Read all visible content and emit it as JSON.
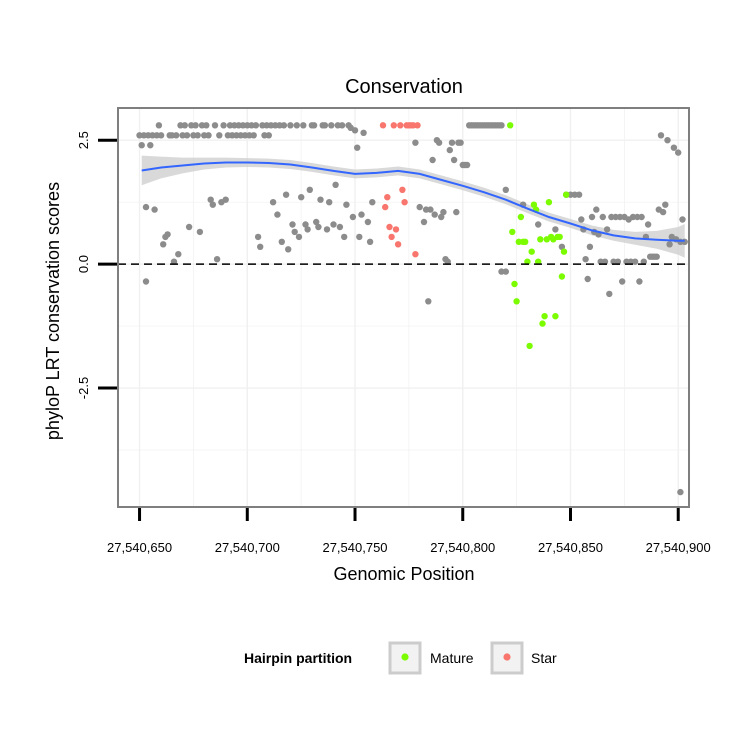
{
  "chart_data": {
    "type": "scatter",
    "title": "Conservation",
    "xlabel": "Genomic Position",
    "ylabel": "phyloP LRT conservation scores",
    "xlim": [
      27540640,
      27540905
    ],
    "ylim": [
      -4.9,
      3.15
    ],
    "x_ticks": [
      27540650,
      27540700,
      27540750,
      27540800,
      27540850,
      27540900
    ],
    "x_tick_labels": [
      "27,540,650",
      "27,540,700",
      "27,540,750",
      "27,540,800",
      "27,540,850",
      "27,540,900"
    ],
    "y_ticks": [
      -2.5,
      0.0,
      2.5
    ],
    "y_tick_labels": [
      "-2.5",
      "0.0",
      "2.5"
    ],
    "reference_line": {
      "y": 0,
      "style": "dashed"
    },
    "grid": true,
    "legend": {
      "title": "Hairpin partition",
      "position": "bottom",
      "entries": [
        {
          "label": "Mature",
          "color": "#7CFC00"
        },
        {
          "label": "Star",
          "color": "#F8766D"
        }
      ]
    },
    "colors": {
      "other": "#8C8C8C",
      "Mature": "#7CFC00",
      "Star": "#F8766D",
      "smooth": "#3366FF",
      "band": "#CCCCCC"
    },
    "series": [
      {
        "name": "Other",
        "points": [
          [
            27540650,
            2.6
          ],
          [
            27540651,
            2.4
          ],
          [
            27540652,
            2.6
          ],
          [
            27540653,
            1.15
          ],
          [
            27540654,
            2.6
          ],
          [
            27540655,
            2.4
          ],
          [
            27540656,
            2.6
          ],
          [
            27540657,
            1.1
          ],
          [
            27540658,
            2.6
          ],
          [
            27540659,
            2.8
          ],
          [
            27540660,
            2.6
          ],
          [
            27540653,
            -0.35
          ],
          [
            27540661,
            0.4
          ],
          [
            27540662,
            0.55
          ],
          [
            27540663,
            0.6
          ],
          [
            27540664,
            2.6
          ],
          [
            27540665,
            2.6
          ],
          [
            27540666,
            0.05
          ],
          [
            27540667,
            2.6
          ],
          [
            27540668,
            0.2
          ],
          [
            27540669,
            2.8
          ],
          [
            27540670,
            2.6
          ],
          [
            27540671,
            2.8
          ],
          [
            27540672,
            2.6
          ],
          [
            27540673,
            0.75
          ],
          [
            27540674,
            2.8
          ],
          [
            27540675,
            2.6
          ],
          [
            27540676,
            2.8
          ],
          [
            27540677,
            2.6
          ],
          [
            27540678,
            0.65
          ],
          [
            27540679,
            2.8
          ],
          [
            27540680,
            2.6
          ],
          [
            27540681,
            2.8
          ],
          [
            27540682,
            2.6
          ],
          [
            27540683,
            1.3
          ],
          [
            27540684,
            1.2
          ],
          [
            27540685,
            2.8
          ],
          [
            27540686,
            0.1
          ],
          [
            27540687,
            2.6
          ],
          [
            27540688,
            1.25
          ],
          [
            27540689,
            2.8
          ],
          [
            27540690,
            1.3
          ],
          [
            27540691,
            2.6
          ],
          [
            27540692,
            2.8
          ],
          [
            27540693,
            2.6
          ],
          [
            27540694,
            2.8
          ],
          [
            27540695,
            2.6
          ],
          [
            27540696,
            2.8
          ],
          [
            27540697,
            2.6
          ],
          [
            27540698,
            2.8
          ],
          [
            27540699,
            2.6
          ],
          [
            27540700,
            2.8
          ],
          [
            27540701,
            2.6
          ],
          [
            27540702,
            2.8
          ],
          [
            27540703,
            2.6
          ],
          [
            27540704,
            2.8
          ],
          [
            27540705,
            0.55
          ],
          [
            27540706,
            0.35
          ],
          [
            27540707,
            2.8
          ],
          [
            27540708,
            2.6
          ],
          [
            27540709,
            2.8
          ],
          [
            27540710,
            2.6
          ],
          [
            27540711,
            2.8
          ],
          [
            27540712,
            1.25
          ],
          [
            27540713,
            2.8
          ],
          [
            27540714,
            1.0
          ],
          [
            27540715,
            2.8
          ],
          [
            27540716,
            0.45
          ],
          [
            27540717,
            2.8
          ],
          [
            27540718,
            1.4
          ],
          [
            27540719,
            0.3
          ],
          [
            27540720,
            2.8
          ],
          [
            27540721,
            0.8
          ],
          [
            27540722,
            0.65
          ],
          [
            27540723,
            2.8
          ],
          [
            27540724,
            0.55
          ],
          [
            27540725,
            1.35
          ],
          [
            27540726,
            2.8
          ],
          [
            27540727,
            0.8
          ],
          [
            27540728,
            0.7
          ],
          [
            27540729,
            1.5
          ],
          [
            27540730,
            2.8
          ],
          [
            27540731,
            2.8
          ],
          [
            27540732,
            0.85
          ],
          [
            27540733,
            0.75
          ],
          [
            27540734,
            1.3
          ],
          [
            27540735,
            2.8
          ],
          [
            27540736,
            2.8
          ],
          [
            27540737,
            0.7
          ],
          [
            27540738,
            1.25
          ],
          [
            27540739,
            2.8
          ],
          [
            27540740,
            0.8
          ],
          [
            27540741,
            1.6
          ],
          [
            27540742,
            2.8
          ],
          [
            27540743,
            0.75
          ],
          [
            27540744,
            2.8
          ],
          [
            27540745,
            0.55
          ],
          [
            27540746,
            1.2
          ],
          [
            27540747,
            2.8
          ],
          [
            27540748,
            2.75
          ],
          [
            27540749,
            0.95
          ],
          [
            27540750,
            2.7
          ],
          [
            27540751,
            2.35
          ],
          [
            27540752,
            0.55
          ],
          [
            27540753,
            1.0
          ],
          [
            27540754,
            2.65
          ],
          [
            27540756,
            0.85
          ],
          [
            27540757,
            0.45
          ],
          [
            27540758,
            1.25
          ],
          [
            27540778,
            2.45
          ],
          [
            27540780,
            1.15
          ],
          [
            27540782,
            0.85
          ],
          [
            27540783,
            1.1
          ],
          [
            27540784,
            -0.75
          ],
          [
            27540785,
            1.1
          ],
          [
            27540786,
            2.1
          ],
          [
            27540787,
            1.0
          ],
          [
            27540788,
            2.5
          ],
          [
            27540789,
            2.45
          ],
          [
            27540790,
            0.95
          ],
          [
            27540791,
            1.05
          ],
          [
            27540792,
            0.1
          ],
          [
            27540793,
            0.05
          ],
          [
            27540794,
            2.3
          ],
          [
            27540795,
            2.45
          ],
          [
            27540796,
            2.1
          ],
          [
            27540797,
            1.05
          ],
          [
            27540798,
            2.45
          ],
          [
            27540799,
            2.45
          ],
          [
            27540800,
            2.0
          ],
          [
            27540801,
            2.0
          ],
          [
            27540802,
            2.0
          ],
          [
            27540803,
            2.8
          ],
          [
            27540804,
            2.8
          ],
          [
            27540805,
            2.8
          ],
          [
            27540806,
            2.8
          ],
          [
            27540807,
            2.8
          ],
          [
            27540808,
            2.8
          ],
          [
            27540809,
            2.8
          ],
          [
            27540810,
            2.8
          ],
          [
            27540811,
            2.8
          ],
          [
            27540812,
            2.8
          ],
          [
            27540813,
            2.8
          ],
          [
            27540814,
            2.8
          ],
          [
            27540815,
            2.8
          ],
          [
            27540816,
            2.8
          ],
          [
            27540817,
            2.8
          ],
          [
            27540818,
            2.8
          ],
          [
            27540818,
            -0.15
          ],
          [
            27540820,
            -0.15
          ],
          [
            27540820,
            1.5
          ],
          [
            27540828,
            1.2
          ],
          [
            27540835,
            0.8
          ],
          [
            27540843,
            0.7
          ],
          [
            27540846,
            0.35
          ],
          [
            27540848,
            1.4
          ],
          [
            27540850,
            1.4
          ],
          [
            27540852,
            1.4
          ],
          [
            27540854,
            1.4
          ],
          [
            27540855,
            0.9
          ],
          [
            27540856,
            0.7
          ],
          [
            27540857,
            0.1
          ],
          [
            27540858,
            -0.3
          ],
          [
            27540859,
            0.35
          ],
          [
            27540860,
            0.95
          ],
          [
            27540861,
            0.65
          ],
          [
            27540862,
            1.1
          ],
          [
            27540863,
            0.6
          ],
          [
            27540864,
            0.05
          ],
          [
            27540865,
            0.95
          ],
          [
            27540866,
            0.05
          ],
          [
            27540867,
            0.7
          ],
          [
            27540868,
            -0.6
          ],
          [
            27540869,
            0.95
          ],
          [
            27540870,
            0.05
          ],
          [
            27540871,
            0.95
          ],
          [
            27540872,
            0.05
          ],
          [
            27540873,
            0.95
          ],
          [
            27540874,
            -0.35
          ],
          [
            27540875,
            0.95
          ],
          [
            27540876,
            0.05
          ],
          [
            27540877,
            0.9
          ],
          [
            27540878,
            0.05
          ],
          [
            27540879,
            0.95
          ],
          [
            27540880,
            0.05
          ],
          [
            27540881,
            0.95
          ],
          [
            27540882,
            -0.35
          ],
          [
            27540883,
            0.95
          ],
          [
            27540884,
            0.05
          ],
          [
            27540885,
            0.55
          ],
          [
            27540886,
            0.8
          ],
          [
            27540887,
            0.15
          ],
          [
            27540888,
            0.15
          ],
          [
            27540889,
            0.15
          ],
          [
            27540890,
            0.15
          ],
          [
            27540891,
            1.1
          ],
          [
            27540892,
            2.6
          ],
          [
            27540893,
            1.05
          ],
          [
            27540894,
            1.2
          ],
          [
            27540895,
            2.5
          ],
          [
            27540896,
            0.4
          ],
          [
            27540897,
            0.55
          ],
          [
            27540898,
            2.35
          ],
          [
            27540899,
            0.5
          ],
          [
            27540900,
            2.25
          ],
          [
            27540901,
            0.45
          ],
          [
            27540902,
            0.9
          ],
          [
            27540903,
            0.45
          ],
          [
            27540901,
            -4.6
          ]
        ]
      },
      {
        "name": "Mature",
        "points": [
          [
            27540822,
            2.8
          ],
          [
            27540823,
            0.65
          ],
          [
            27540824,
            -0.4
          ],
          [
            27540825,
            -0.75
          ],
          [
            27540826,
            0.45
          ],
          [
            27540827,
            0.95
          ],
          [
            27540828,
            0.45
          ],
          [
            27540829,
            0.45
          ],
          [
            27540830,
            0.05
          ],
          [
            27540831,
            -1.65
          ],
          [
            27540832,
            0.25
          ],
          [
            27540833,
            1.2
          ],
          [
            27540834,
            1.1
          ],
          [
            27540835,
            0.05
          ],
          [
            27540836,
            0.5
          ],
          [
            27540837,
            -1.2
          ],
          [
            27540838,
            -1.05
          ],
          [
            27540839,
            0.5
          ],
          [
            27540840,
            1.25
          ],
          [
            27540841,
            0.55
          ],
          [
            27540842,
            0.5
          ],
          [
            27540843,
            -1.05
          ],
          [
            27540844,
            0.55
          ],
          [
            27540845,
            0.55
          ],
          [
            27540846,
            -0.25
          ],
          [
            27540847,
            0.25
          ],
          [
            27540848,
            1.4
          ]
        ]
      },
      {
        "name": "Star",
        "points": [
          [
            27540763,
            2.8
          ],
          [
            27540764,
            1.15
          ],
          [
            27540765,
            1.35
          ],
          [
            27540766,
            0.75
          ],
          [
            27540767,
            0.55
          ],
          [
            27540768,
            2.8
          ],
          [
            27540769,
            0.7
          ],
          [
            27540770,
            0.4
          ],
          [
            27540771,
            2.8
          ],
          [
            27540772,
            1.5
          ],
          [
            27540773,
            1.25
          ],
          [
            27540774,
            2.8
          ],
          [
            27540775,
            2.8
          ],
          [
            27540776,
            2.8
          ],
          [
            27540777,
            2.8
          ],
          [
            27540778,
            0.2
          ],
          [
            27540779,
            2.8
          ]
        ]
      }
    ],
    "smooth": {
      "method": "loess",
      "x": [
        27540651,
        27540660,
        27540670,
        27540680,
        27540690,
        27540700,
        27540710,
        27540720,
        27540730,
        27540740,
        27540750,
        27540760,
        27540770,
        27540780,
        27540790,
        27540800,
        27540810,
        27540820,
        27540830,
        27540840,
        27540850,
        27540860,
        27540870,
        27540880,
        27540890,
        27540900,
        27540903
      ],
      "y": [
        1.89,
        1.95,
        1.99,
        2.03,
        2.05,
        2.05,
        2.04,
        2.01,
        1.95,
        1.88,
        1.82,
        1.84,
        1.88,
        1.82,
        1.7,
        1.58,
        1.45,
        1.3,
        1.12,
        0.95,
        0.82,
        0.68,
        0.58,
        0.52,
        0.49,
        0.47,
        0.47
      ],
      "se": [
        0.3,
        0.22,
        0.16,
        0.12,
        0.1,
        0.09,
        0.09,
        0.09,
        0.09,
        0.09,
        0.09,
        0.09,
        0.09,
        0.09,
        0.09,
        0.09,
        0.09,
        0.09,
        0.09,
        0.09,
        0.09,
        0.1,
        0.11,
        0.13,
        0.18,
        0.28,
        0.34
      ]
    }
  }
}
